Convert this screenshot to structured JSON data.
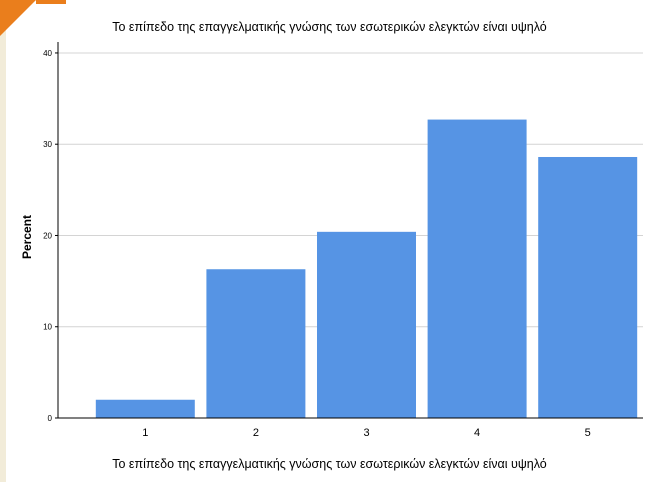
{
  "chart_data": {
    "type": "bar",
    "title": "Το επίπεδο της επαγγελματικής γνώσης των εσωτερικών ελεγκτών είναι υψηλό",
    "xlabel": "Το επίπεδο της επαγγελματικής γνώσης των εσωτερικών ελεγκτών είναι υψηλό",
    "ylabel": "Percent",
    "categories": [
      "1",
      "2",
      "3",
      "4",
      "5"
    ],
    "values": [
      2.0,
      16.3,
      20.4,
      32.7,
      28.6
    ],
    "ylim": [
      0,
      40
    ],
    "yticks": [
      "0",
      "10",
      "20",
      "30",
      "40"
    ],
    "grid": true,
    "bar_color": "#5694e4",
    "gridline_color": "#d4d4d4"
  },
  "decor": {
    "accent_color": "#ea7e1c"
  }
}
